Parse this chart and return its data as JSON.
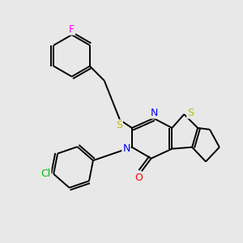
{
  "bg_color": "#e8e8e8",
  "atom_colors": {
    "C": "#000000",
    "N": "#0000ee",
    "S": "#bbbb00",
    "O": "#ff0000",
    "F": "#ff00ff",
    "Cl": "#00bb00"
  },
  "bond_color": "#000000",
  "line_width": 1.4,
  "fig_size": [
    3.0,
    3.0
  ],
  "dpi": 100
}
